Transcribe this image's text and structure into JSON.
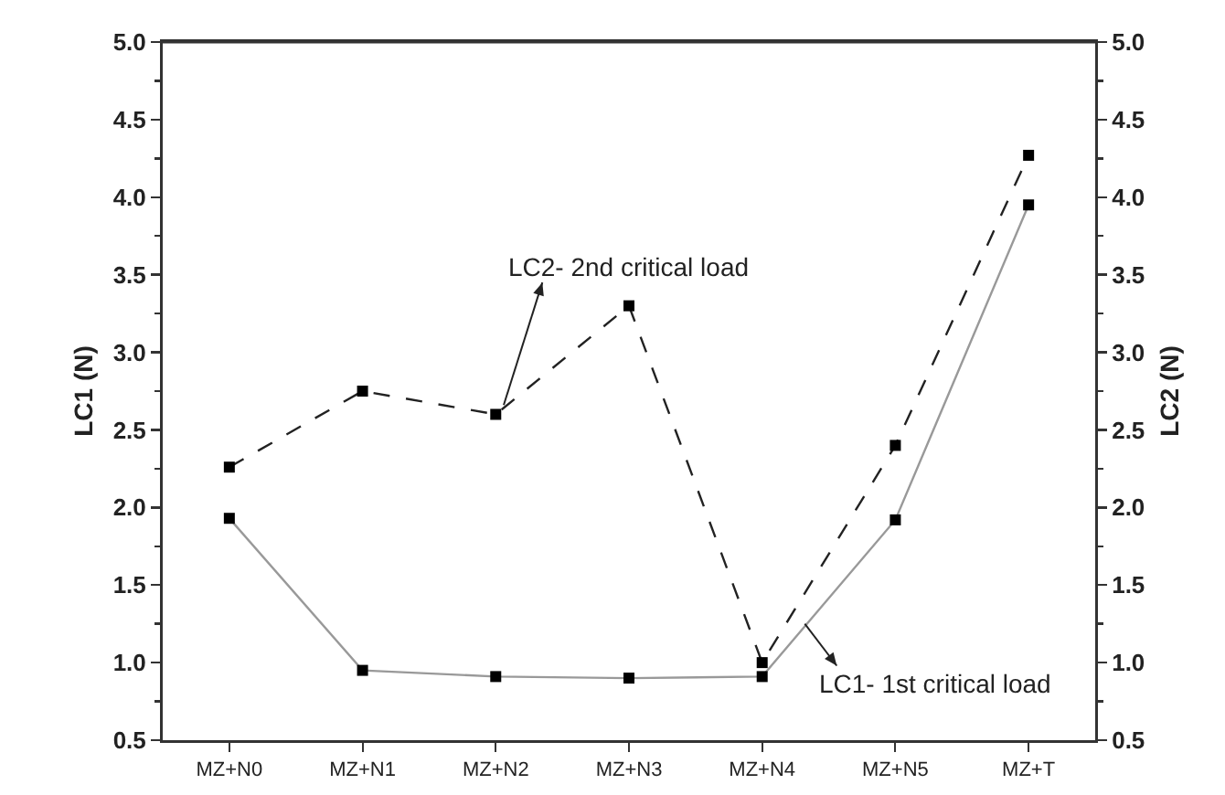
{
  "chart_data": {
    "type": "line",
    "ylabel": "LC1 (N)",
    "y2label": "LC2 (N)",
    "categories": [
      "MZ+N0",
      "MZ+N1",
      "MZ+N2",
      "MZ+N3",
      "MZ+N4",
      "MZ+N5",
      "MZ+T"
    ],
    "series": [
      {
        "color": "#999999",
        "line_style": "solid",
        "values": [
          1.93,
          0.95,
          0.91,
          0.9,
          0.91,
          1.92,
          3.95
        ]
      },
      {
        "color": "#222222",
        "line_style": "dashed",
        "axis": "y2",
        "values": [
          2.26,
          2.75,
          2.6,
          3.3,
          1.0,
          2.4,
          4.27
        ]
      }
    ],
    "ylim": [
      0.5,
      5.0
    ],
    "yticks": [
      0.5,
      {
        "value": 1,
        "label": "1.0"
      },
      1.5,
      {
        "value": 2,
        "label": "2.0"
      },
      2.5,
      {
        "value": 3,
        "label": "3.0"
      },
      3.5,
      {
        "value": 4,
        "label": "4.0"
      },
      4.5,
      {
        "value": 5,
        "label": "5.0"
      }
    ],
    "y2lim": [
      0.5,
      5.0
    ],
    "y2ticks": [
      0.5,
      {
        "value": 1,
        "label": "1.0"
      },
      1.5,
      {
        "value": 2,
        "label": "2.0"
      },
      2.5,
      {
        "value": 3,
        "label": "3.0"
      },
      3.5,
      {
        "value": 4,
        "label": "4.0"
      },
      4.5,
      {
        "value": 5,
        "label": "5.0"
      }
    ],
    "annotations": [
      {
        "text": "LC2- 2nd critical load",
        "x": "MZ+N2",
        "y": 2.6
      },
      "LC1- 1st critical load"
    ],
    "marker": "square",
    "grid": false
  }
}
